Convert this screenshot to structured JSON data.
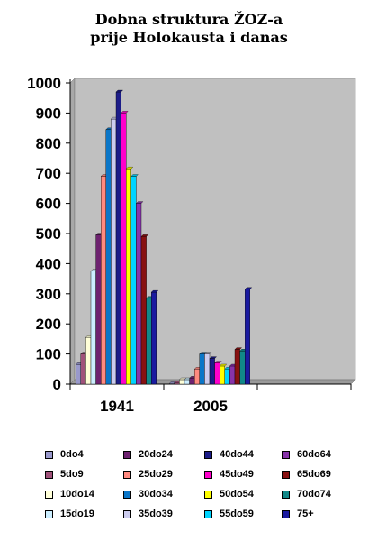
{
  "chart_data": {
    "type": "bar",
    "title_lines": [
      "Dobna struktura ŽOZ-a",
      "prije Holokausta i danas"
    ],
    "categories": [
      "1941",
      "2005"
    ],
    "series": [
      {
        "name": "0do4",
        "color": "#9999cc",
        "values": [
          65,
          2
        ]
      },
      {
        "name": "5do9",
        "color": "#a0527a",
        "values": [
          100,
          5
        ]
      },
      {
        "name": "10do14",
        "color": "#ffffd8",
        "values": [
          155,
          15
        ]
      },
      {
        "name": "15do19",
        "color": "#cceeff",
        "values": [
          375,
          15
        ]
      },
      {
        "name": "20do24",
        "color": "#6e2270",
        "values": [
          495,
          20
        ]
      },
      {
        "name": "25do29",
        "color": "#ff8a80",
        "values": [
          690,
          50
        ]
      },
      {
        "name": "30do34",
        "color": "#0a76c8",
        "values": [
          845,
          100
        ]
      },
      {
        "name": "35do39",
        "color": "#ccccee",
        "values": [
          880,
          100
        ]
      },
      {
        "name": "40do44",
        "color": "#1c1c88",
        "values": [
          970,
          85
        ]
      },
      {
        "name": "45do49",
        "color": "#ff00cc",
        "values": [
          900,
          70
        ]
      },
      {
        "name": "50do54",
        "color": "#ffff00",
        "values": [
          715,
          60
        ]
      },
      {
        "name": "55do59",
        "color": "#00d4ff",
        "values": [
          690,
          50
        ]
      },
      {
        "name": "60do64",
        "color": "#8833aa",
        "values": [
          600,
          60
        ]
      },
      {
        "name": "65do69",
        "color": "#881111",
        "values": [
          490,
          115
        ]
      },
      {
        "name": "70do74",
        "color": "#118888",
        "values": [
          285,
          110
        ]
      },
      {
        "name": "75+",
        "color": "#1a1aa0",
        "values": [
          305,
          315
        ]
      }
    ],
    "y_ticks": [
      "0",
      "100",
      "200",
      "300",
      "400",
      "500",
      "600",
      "700",
      "800",
      "900",
      "1000"
    ],
    "ylim": [
      0,
      1000
    ],
    "plot_background": "#c0c0c0",
    "grid": false,
    "legend_position": "bottom",
    "group_slots": 3
  }
}
